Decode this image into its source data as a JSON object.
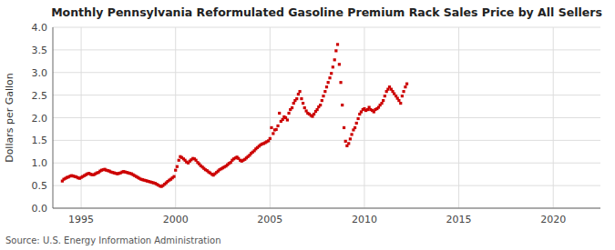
{
  "chart_data": {
    "type": "scatter",
    "title": "Monthly Pennsylvania Reformulated Gasoline Premium Rack Sales Price by All Sellers",
    "y_label": "Dollars per Gallon",
    "source": "Source: U.S. Energy Information Administration",
    "color": "#cc0000",
    "marker": "square",
    "grid": true,
    "xlim": [
      1993.5,
      2022.5
    ],
    "ylim": [
      0.0,
      4.0
    ],
    "xticks": [
      1995,
      2000,
      2005,
      2010,
      2015,
      2020
    ],
    "yticks": [
      {
        "value": 0.0,
        "label": "0.0"
      },
      0.5,
      {
        "value": 1.0,
        "label": "1.0"
      },
      1.5,
      {
        "value": 2.0,
        "label": "2.0"
      },
      2.5,
      {
        "value": 3.0,
        "label": "3.0"
      },
      3.5,
      {
        "value": 4.0,
        "label": "4.0"
      }
    ],
    "x": [
      1994.0,
      1994.08,
      1994.17,
      1994.25,
      1994.33,
      1994.42,
      1994.5,
      1994.58,
      1994.67,
      1994.75,
      1994.83,
      1994.92,
      1995.0,
      1995.08,
      1995.17,
      1995.25,
      1995.33,
      1995.42,
      1995.5,
      1995.58,
      1995.67,
      1995.75,
      1995.83,
      1995.92,
      1996.0,
      1996.08,
      1996.17,
      1996.25,
      1996.33,
      1996.42,
      1996.5,
      1996.58,
      1996.67,
      1996.75,
      1996.83,
      1996.92,
      1997.0,
      1997.08,
      1997.17,
      1997.25,
      1997.33,
      1997.42,
      1997.5,
      1997.58,
      1997.67,
      1997.75,
      1997.83,
      1997.92,
      1998.0,
      1998.08,
      1998.17,
      1998.25,
      1998.33,
      1998.42,
      1998.5,
      1998.58,
      1998.67,
      1998.75,
      1998.83,
      1998.92,
      1999.0,
      1999.08,
      1999.17,
      1999.25,
      1999.33,
      1999.42,
      1999.5,
      1999.58,
      1999.67,
      1999.75,
      1999.83,
      1999.92,
      2000.0,
      2000.08,
      2000.17,
      2000.25,
      2000.33,
      2000.42,
      2000.5,
      2000.58,
      2000.67,
      2000.75,
      2000.83,
      2000.92,
      2001.0,
      2001.08,
      2001.17,
      2001.25,
      2001.33,
      2001.42,
      2001.5,
      2001.58,
      2001.67,
      2001.75,
      2001.83,
      2001.92,
      2002.0,
      2002.08,
      2002.17,
      2002.25,
      2002.33,
      2002.42,
      2002.5,
      2002.58,
      2002.67,
      2002.75,
      2002.83,
      2002.92,
      2003.0,
      2003.08,
      2003.17,
      2003.25,
      2003.33,
      2003.42,
      2003.5,
      2003.58,
      2003.67,
      2003.75,
      2003.83,
      2003.92,
      2004.0,
      2004.08,
      2004.17,
      2004.25,
      2004.33,
      2004.42,
      2004.5,
      2004.58,
      2004.67,
      2004.75,
      2004.83,
      2004.92,
      2005.0,
      2005.08,
      2005.17,
      2005.25,
      2005.33,
      2005.42,
      2005.5,
      2005.58,
      2005.67,
      2005.75,
      2005.83,
      2005.92,
      2006.0,
      2006.08,
      2006.17,
      2006.25,
      2006.33,
      2006.42,
      2006.5,
      2006.58,
      2006.67,
      2006.75,
      2006.83,
      2006.92,
      2007.0,
      2007.08,
      2007.17,
      2007.25,
      2007.33,
      2007.42,
      2007.5,
      2007.58,
      2007.67,
      2007.75,
      2007.83,
      2007.92,
      2008.0,
      2008.08,
      2008.17,
      2008.25,
      2008.33,
      2008.42,
      2008.5,
      2008.58,
      2008.67,
      2008.75,
      2008.83,
      2008.92,
      2009.0,
      2009.08,
      2009.17,
      2009.25,
      2009.33,
      2009.42,
      2009.5,
      2009.58,
      2009.67,
      2009.75,
      2009.83,
      2009.92,
      2010.0,
      2010.08,
      2010.17,
      2010.25,
      2010.33,
      2010.42,
      2010.5,
      2010.58,
      2010.67,
      2010.75,
      2010.83,
      2010.92,
      2011.0,
      2011.08,
      2011.17,
      2011.25,
      2011.33,
      2011.42,
      2011.5,
      2011.58,
      2011.67,
      2011.75,
      2011.83,
      2011.92,
      2012.0,
      2012.08,
      2012.17,
      2012.25
    ],
    "values": [
      0.6,
      0.64,
      0.66,
      0.68,
      0.69,
      0.71,
      0.72,
      0.71,
      0.7,
      0.69,
      0.67,
      0.66,
      0.68,
      0.7,
      0.72,
      0.74,
      0.76,
      0.77,
      0.75,
      0.74,
      0.74,
      0.76,
      0.78,
      0.79,
      0.82,
      0.84,
      0.85,
      0.86,
      0.84,
      0.83,
      0.82,
      0.8,
      0.79,
      0.78,
      0.77,
      0.76,
      0.77,
      0.78,
      0.8,
      0.81,
      0.8,
      0.79,
      0.78,
      0.77,
      0.76,
      0.74,
      0.72,
      0.7,
      0.68,
      0.66,
      0.64,
      0.63,
      0.62,
      0.61,
      0.6,
      0.59,
      0.58,
      0.57,
      0.56,
      0.55,
      0.53,
      0.51,
      0.49,
      0.48,
      0.5,
      0.53,
      0.56,
      0.59,
      0.62,
      0.64,
      0.67,
      0.7,
      0.84,
      0.92,
      1.06,
      1.14,
      1.12,
      1.09,
      1.06,
      1.02,
      1.0,
      1.04,
      1.07,
      1.1,
      1.09,
      1.06,
      1.01,
      0.98,
      0.94,
      0.91,
      0.88,
      0.85,
      0.83,
      0.8,
      0.78,
      0.75,
      0.73,
      0.76,
      0.79,
      0.82,
      0.85,
      0.87,
      0.89,
      0.91,
      0.93,
      0.96,
      0.99,
      1.01,
      1.06,
      1.09,
      1.11,
      1.13,
      1.1,
      1.06,
      1.04,
      1.06,
      1.08,
      1.11,
      1.14,
      1.17,
      1.21,
      1.24,
      1.27,
      1.31,
      1.34,
      1.37,
      1.4,
      1.42,
      1.43,
      1.45,
      1.47,
      1.49,
      1.54,
      1.78,
      1.65,
      1.73,
      1.74,
      1.82,
      2.1,
      1.92,
      1.96,
      2.02,
      2.0,
      1.95,
      2.1,
      2.18,
      2.22,
      2.32,
      2.38,
      2.42,
      2.52,
      2.58,
      2.42,
      2.32,
      2.22,
      2.15,
      2.1,
      2.08,
      2.05,
      2.03,
      2.08,
      2.14,
      2.18,
      2.24,
      2.28,
      2.38,
      2.48,
      2.58,
      2.68,
      2.78,
      2.88,
      2.98,
      3.12,
      3.28,
      3.48,
      3.62,
      3.18,
      2.78,
      2.28,
      1.78,
      1.48,
      1.38,
      1.43,
      1.53,
      1.63,
      1.73,
      1.78,
      1.88,
      1.98,
      2.08,
      2.13,
      2.18,
      2.2,
      2.16,
      2.18,
      2.23,
      2.18,
      2.16,
      2.13,
      2.18,
      2.2,
      2.23,
      2.28,
      2.32,
      2.38,
      2.48,
      2.58,
      2.63,
      2.68,
      2.63,
      2.58,
      2.53,
      2.48,
      2.43,
      2.38,
      2.32,
      2.48,
      2.58,
      2.68,
      2.75
    ]
  }
}
